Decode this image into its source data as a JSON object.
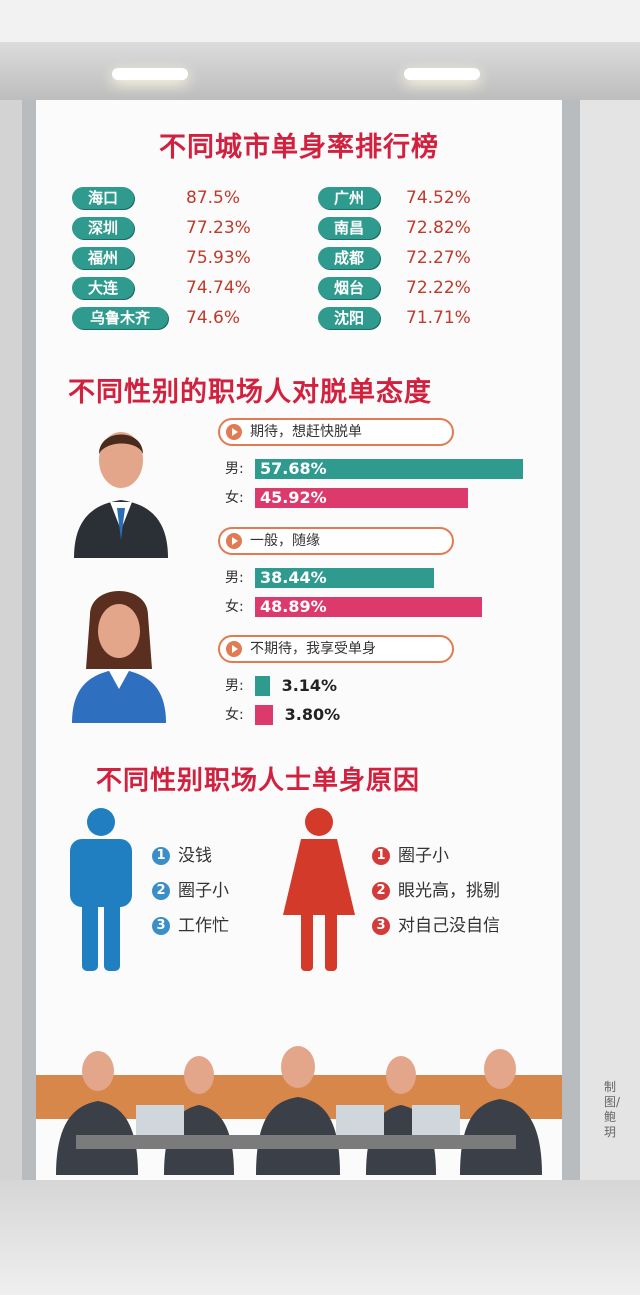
{
  "sections": {
    "title1": "不同城市单身率排行榜",
    "title2": "不同性别的职场人对脱单态度",
    "title3": "不同性别职场人士单身原因"
  },
  "chart_data": [
    {
      "type": "table",
      "title": "不同城市单身率排行榜",
      "rows": [
        {
          "city": "海口",
          "value": "87.5%"
        },
        {
          "city": "深圳",
          "value": "77.23%"
        },
        {
          "city": "福州",
          "value": "75.93%"
        },
        {
          "city": "大连",
          "value": "74.74%"
        },
        {
          "city": "乌鲁木齐",
          "value": "74.6%"
        },
        {
          "city": "广州",
          "value": "74.52%"
        },
        {
          "city": "南昌",
          "value": "72.82%"
        },
        {
          "city": "成都",
          "value": "72.27%"
        },
        {
          "city": "烟台",
          "value": "72.22%"
        },
        {
          "city": "沈阳",
          "value": "71.71%"
        }
      ]
    },
    {
      "type": "bar",
      "title": "不同性别的职场人对脱单态度",
      "groups": [
        {
          "label": "期待，想赶快脱单",
          "male": 57.68,
          "female": 45.92,
          "male_text": "57.68%",
          "female_text": "45.92%"
        },
        {
          "label": "一般，随缘",
          "male": 38.44,
          "female": 48.89,
          "male_text": "38.44%",
          "female_text": "48.89%"
        },
        {
          "label": "不期待，我享受单身",
          "male": 3.14,
          "female": 3.8,
          "male_text": "3.14%",
          "female_text": "3.80%"
        }
      ],
      "male_label": "男:",
      "female_label": "女:",
      "colors": {
        "male": "#2f9b8e",
        "female": "#dc3a6c"
      }
    }
  ],
  "reasons": {
    "male": [
      {
        "num": "1",
        "text": "没钱"
      },
      {
        "num": "2",
        "text": "圈子小"
      },
      {
        "num": "3",
        "text": "工作忙"
      }
    ],
    "female": [
      {
        "num": "1",
        "text": "圈子小"
      },
      {
        "num": "2",
        "text": "眼光高，挑剔"
      },
      {
        "num": "3",
        "text": "对自己没自信"
      }
    ]
  },
  "credit": "制图/鲍玥"
}
